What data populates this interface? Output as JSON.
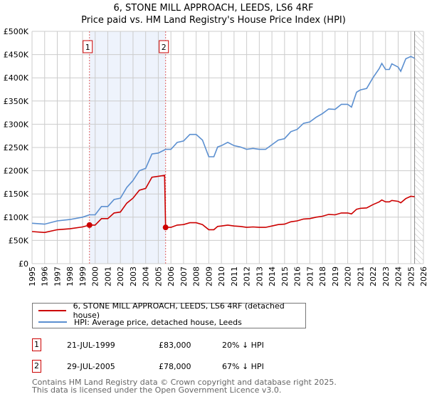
{
  "chart_data": {
    "type": "line",
    "title": "6, STONE MILL APPROACH, LEEDS, LS6 4RF",
    "subtitle": "Price paid vs. HM Land Registry's House Price Index (HPI)",
    "xlabel": "",
    "ylabel": "",
    "xlim": [
      1995,
      2026
    ],
    "ylim": [
      0,
      500000
    ],
    "grid": true,
    "x_ticks": [
      "1995",
      "1996",
      "1997",
      "1998",
      "1999",
      "2000",
      "2001",
      "2002",
      "2003",
      "2004",
      "2005",
      "2006",
      "2007",
      "2008",
      "2009",
      "2010",
      "2011",
      "2012",
      "2013",
      "2014",
      "2015",
      "2016",
      "2017",
      "2018",
      "2019",
      "2020",
      "2021",
      "2022",
      "2023",
      "2024",
      "2025",
      "2026"
    ],
    "y_ticks": [
      {
        "v": 0,
        "label": "£0"
      },
      {
        "v": 50000,
        "label": "£50K"
      },
      {
        "v": 100000,
        "label": "£100K"
      },
      {
        "v": 150000,
        "label": "£150K"
      },
      {
        "v": 200000,
        "label": "£200K"
      },
      {
        "v": 250000,
        "label": "£250K"
      },
      {
        "v": 300000,
        "label": "£300K"
      },
      {
        "v": 350000,
        "label": "£350K"
      },
      {
        "v": 400000,
        "label": "£400K"
      },
      {
        "v": 450000,
        "label": "£450K"
      },
      {
        "v": 500000,
        "label": "£500K"
      }
    ],
    "series": [
      {
        "name": "6, STONE MILL APPROACH, LEEDS, LS6 4RF (detached house)",
        "color": "#cc0000",
        "x": [
          1995,
          1996,
          1997,
          1998,
          1999,
          1999.55,
          2000,
          2000.5,
          2001,
          2001.5,
          2002,
          2002.5,
          2003,
          2003.5,
          2004,
          2004.5,
          2005,
          2005.5,
          2005.58,
          2006,
          2006.5,
          2007,
          2007.5,
          2008,
          2008.5,
          2009,
          2009.4,
          2009.7,
          2010,
          2010.5,
          2011,
          2011.5,
          2012,
          2012.5,
          2013,
          2013.5,
          2014,
          2014.5,
          2015,
          2015.5,
          2016,
          2016.5,
          2017,
          2017.5,
          2018,
          2018.5,
          2019,
          2019.5,
          2020,
          2020.3,
          2020.7,
          2021,
          2021.5,
          2022,
          2022.5,
          2022.7,
          2023,
          2023.3,
          2023.5,
          2024,
          2024.2,
          2024.6,
          2025,
          2025.3
        ],
        "y": [
          69000,
          67000,
          73000,
          75000,
          79000,
          83000,
          83000,
          97000,
          97000,
          109000,
          111000,
          130000,
          141000,
          158000,
          162000,
          186000,
          188000,
          190000,
          78000,
          78000,
          83000,
          84000,
          88000,
          88000,
          84000,
          73000,
          73000,
          80000,
          81000,
          83000,
          81000,
          80000,
          78000,
          79000,
          78000,
          78000,
          81000,
          84000,
          85000,
          90000,
          92000,
          96000,
          97000,
          100000,
          102000,
          106000,
          105000,
          109000,
          109000,
          107000,
          117000,
          119000,
          120000,
          127000,
          133000,
          137000,
          133000,
          133000,
          136000,
          134000,
          131000,
          140000,
          145000,
          144000
        ]
      },
      {
        "name": "HPI: Average price, detached house, Leeds",
        "color": "#5b8fd0",
        "x": [
          1995,
          1996,
          1997,
          1998,
          1999,
          1999.55,
          2000,
          2000.5,
          2001,
          2001.5,
          2002,
          2002.5,
          2003,
          2003.5,
          2004,
          2004.5,
          2005,
          2005.58,
          2006,
          2006.5,
          2007,
          2007.5,
          2008,
          2008.5,
          2009,
          2009.4,
          2009.7,
          2010,
          2010.5,
          2011,
          2011.5,
          2012,
          2012.5,
          2013,
          2013.5,
          2014,
          2014.5,
          2015,
          2015.5,
          2016,
          2016.5,
          2017,
          2017.5,
          2018,
          2018.5,
          2019,
          2019.5,
          2020,
          2020.3,
          2020.7,
          2021,
          2021.5,
          2022,
          2022.5,
          2022.7,
          2023,
          2023.3,
          2023.5,
          2024,
          2024.2,
          2024.6,
          2025,
          2025.3
        ],
        "y": [
          87000,
          85000,
          92000,
          95000,
          100000,
          105000,
          105000,
          123000,
          123000,
          138000,
          141000,
          164000,
          179000,
          200000,
          205000,
          236000,
          238000,
          246000,
          246000,
          261000,
          264000,
          278000,
          278000,
          266000,
          230000,
          230000,
          251000,
          254000,
          261000,
          254000,
          251000,
          246000,
          248000,
          246000,
          246000,
          256000,
          266000,
          269000,
          284000,
          289000,
          302000,
          305000,
          315000,
          323000,
          333000,
          332000,
          343000,
          343000,
          337000,
          369000,
          374000,
          377000,
          400000,
          420000,
          431000,
          418000,
          418000,
          430000,
          423000,
          414000,
          441000,
          446000,
          442000
        ]
      }
    ],
    "sales": [
      {
        "label": "1",
        "date": "21-JUL-1999",
        "x": 1999.55,
        "price_value": 83000,
        "price": "£83,000",
        "hpi_diff": "20% ↓ HPI"
      },
      {
        "label": "2",
        "date": "29-JUL-2005",
        "x": 2005.58,
        "price_value": 78000,
        "price": "£78,000",
        "hpi_diff": "67% ↓ HPI"
      }
    ],
    "data_end": 2025.3,
    "legend_placement": "below"
  },
  "footer": {
    "line1": "Contains HM Land Registry data © Crown copyright and database right 2025.",
    "line2": "This data is licensed under the Open Government Licence v3.0."
  }
}
